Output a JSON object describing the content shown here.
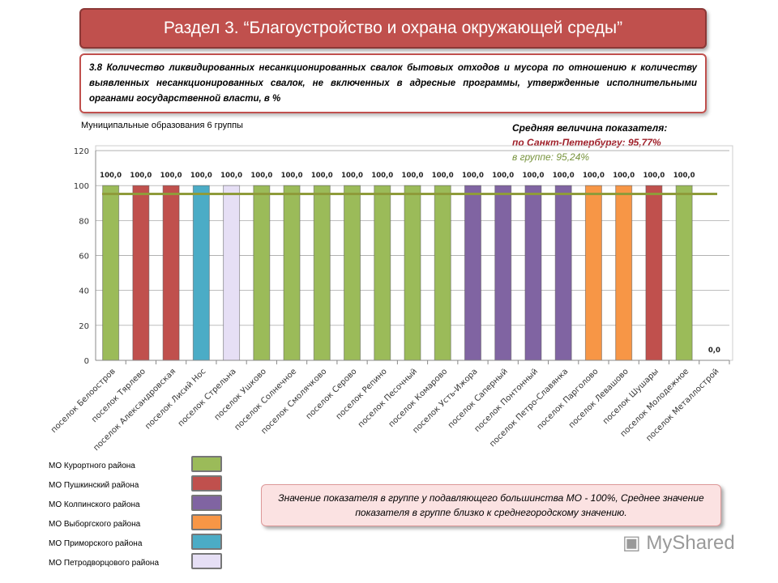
{
  "title": "Раздел 3. “Благоустройство и охрана окружающей среды”",
  "description": "3.8 Количество ликвидированных несанкционированных свалок бытовых отходов и мусора по отношению к количеству выявленных несанкционированных свалок, не включенных в адресные программы, утвержденные исполнительными органами государственной власти, в %",
  "group_label": "Муниципальные образования 6 группы",
  "average": {
    "heading": "Средняя величина показателя:",
    "spb": "по Санкт-Петербургу: 95,77%",
    "group": "в группе:  95,24%"
  },
  "note": "Значение показателя в группе у подавляющего большинства МО - 100%, Среднее значение показателя в группе близко к среднегородскому значению.",
  "logo": "MyShared",
  "legend": [
    {
      "label": "МО Курортного района",
      "color": "#9bbb59"
    },
    {
      "label": "МО Пушкинский района",
      "color": "#c0504d"
    },
    {
      "label": "МО Колпинского района",
      "color": "#8064a2"
    },
    {
      "label": "МО Выборгского района",
      "color": "#f79646"
    },
    {
      "label": "МО Приморского района",
      "color": "#4bacc6"
    },
    {
      "label": "МО Петродворцового района",
      "color": "#e6dff5"
    }
  ],
  "chart_data": {
    "type": "bar",
    "categories": [
      "поселок Белоостров",
      "поселок Тярлево",
      "поселок Александровская",
      "поселок Лисий Нос",
      "поселок Стрельна",
      "поселок Ушково",
      "поселок Солнечное",
      "поселок Смолячково",
      "поселок Серово",
      "поселок Репино",
      "поселок Песочный",
      "поселок Комарово",
      "поселок Усть-Ижора",
      "поселок Саперный",
      "поселок Понтонный",
      "поселок Петро-Славянка",
      "поселок Парголово",
      "поселок Левашово",
      "поселок Шушары",
      "поселок Молодежное",
      "поселок Металлострой"
    ],
    "values": [
      100,
      100,
      100,
      100,
      100,
      100,
      100,
      100,
      100,
      100,
      100,
      100,
      100,
      100,
      100,
      100,
      100,
      100,
      100,
      100,
      0
    ],
    "data_labels": [
      "100,0",
      "100,0",
      "100,0",
      "100,0",
      "100,0",
      "100,0",
      "100,0",
      "100,0",
      "100,0",
      "100,0",
      "100,0",
      "100,0",
      "100,0",
      "100,0",
      "100,0",
      "100,0",
      "100,0",
      "100,0",
      "100,0",
      "100,0",
      "0,0"
    ],
    "colors": [
      "#9bbb59",
      "#c0504d",
      "#c0504d",
      "#4bacc6",
      "#e6dff5",
      "#9bbb59",
      "#9bbb59",
      "#9bbb59",
      "#9bbb59",
      "#9bbb59",
      "#9bbb59",
      "#9bbb59",
      "#8064a2",
      "#8064a2",
      "#8064a2",
      "#8064a2",
      "#f79646",
      "#f79646",
      "#c0504d",
      "#9bbb59",
      "#9bbb59"
    ],
    "average_line": 95.24,
    "average_line_color": "#8f9b3a",
    "yticks": [
      "0",
      "20",
      "40",
      "60",
      "80",
      "100",
      "120"
    ],
    "ylim": [
      0,
      120
    ],
    "grid": true
  }
}
